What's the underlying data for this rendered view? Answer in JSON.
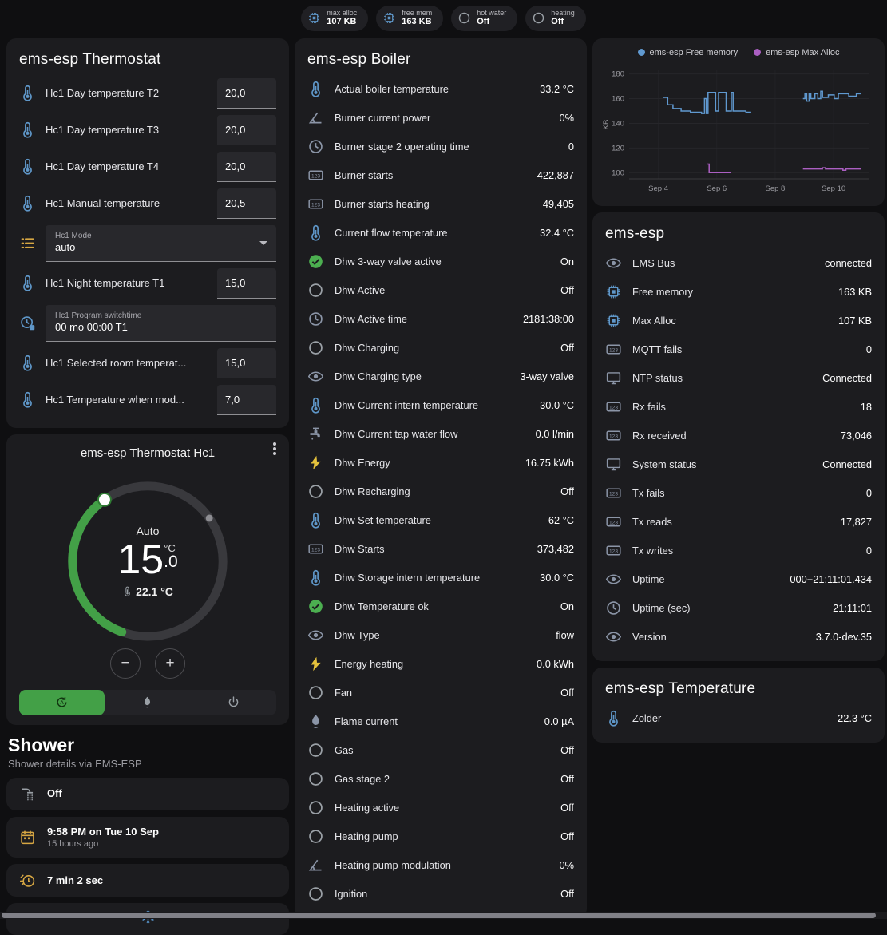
{
  "colors": {
    "background": "#0f0f11",
    "card": "#1c1c1f",
    "accent_green": "#43a047",
    "icon_blue": "#5f97c9",
    "icon_amber": "#d7a743",
    "icon_green": "#4caf50",
    "chart_free_memory": "#6099d0",
    "chart_max_alloc": "#ab5fc2"
  },
  "glyphs": {
    "minus": "−",
    "plus": "+"
  },
  "topbar": {
    "pills": [
      {
        "icon": "chip",
        "color": "c-blue",
        "label": "max alloc",
        "value": "107 KB"
      },
      {
        "icon": "chip",
        "color": "c-blue",
        "label": "free mem",
        "value": "163 KB"
      },
      {
        "icon": "circle",
        "color": "c-gray",
        "label": "hot water",
        "value": "Off"
      },
      {
        "icon": "circle",
        "color": "c-gray",
        "label": "heating",
        "value": "Off"
      }
    ]
  },
  "thermostat": {
    "title": "ems-esp Thermostat",
    "rows": [
      {
        "icon": "thermometer",
        "color": "c-blue",
        "type": "number",
        "label": "Hc1 Day temperature T2",
        "value": "20,0"
      },
      {
        "icon": "thermometer",
        "color": "c-blue",
        "type": "number",
        "label": "Hc1 Day temperature T3",
        "value": "20,0"
      },
      {
        "icon": "thermometer",
        "color": "c-blue",
        "type": "number",
        "label": "Hc1 Day temperature T4",
        "value": "20,0"
      },
      {
        "icon": "thermometer",
        "color": "c-blue",
        "type": "number",
        "label": "Hc1 Manual temperature",
        "value": "20,5"
      },
      {
        "icon": "list",
        "color": "c-amber",
        "type": "select",
        "label": "Hc1 Mode",
        "value": "auto"
      },
      {
        "icon": "thermometer",
        "color": "c-blue",
        "type": "number",
        "label": "Hc1 Night temperature T1",
        "value": "15,0"
      },
      {
        "icon": "clock-edit",
        "color": "c-blue",
        "type": "textfield",
        "label": "Hc1 Program switchtime",
        "value": "00 mo 00:00 T1"
      },
      {
        "icon": "thermometer",
        "color": "c-blue",
        "type": "number",
        "label": "Hc1 Selected room temperat...",
        "value": "15,0"
      },
      {
        "icon": "thermometer",
        "color": "c-blue",
        "type": "number",
        "label": "Hc1 Temperature when mod...",
        "value": "7,0"
      }
    ]
  },
  "dial": {
    "title": "ems-esp Thermostat Hc1",
    "mode": "Auto",
    "temp_int": "15",
    "temp_dec": ".0",
    "unit": "°C",
    "current": "22.1 °C"
  },
  "shower": {
    "title": "Shower",
    "subtitle": "Shower details via EMS-ESP",
    "cards": [
      {
        "icon": "shower",
        "color": "c-gray",
        "main": "Off",
        "sub": ""
      },
      {
        "icon": "calendar",
        "color": "c-amber",
        "main": "9:58 PM on Tue 10 Sep",
        "sub": "15 hours ago"
      },
      {
        "icon": "timer",
        "color": "c-amber",
        "main": "7 min 2 sec",
        "sub": ""
      }
    ]
  },
  "boiler": {
    "title": "ems-esp Boiler",
    "rows": [
      {
        "icon": "thermometer",
        "color": "c-blue",
        "label": "Actual boiler temperature",
        "value": "33.2 °C"
      },
      {
        "icon": "angle",
        "color": "c-slate",
        "label": "Burner current power",
        "value": "0%"
      },
      {
        "icon": "clock",
        "color": "c-slate",
        "label": "Burner stage 2 operating time",
        "value": "0"
      },
      {
        "icon": "counter",
        "color": "c-slate",
        "label": "Burner starts",
        "value": "422,887"
      },
      {
        "icon": "counter",
        "color": "c-slate",
        "label": "Burner starts heating",
        "value": "49,405"
      },
      {
        "icon": "thermometer",
        "color": "c-blue",
        "label": "Current flow temperature",
        "value": "32.4 °C"
      },
      {
        "icon": "check-circle",
        "color": "c-green",
        "label": "Dhw 3-way valve active",
        "value": "On"
      },
      {
        "icon": "circle",
        "color": "c-gray",
        "label": "Dhw Active",
        "value": "Off"
      },
      {
        "icon": "clock",
        "color": "c-slate",
        "label": "Dhw Active time",
        "value": "2181:38:00"
      },
      {
        "icon": "circle",
        "color": "c-gray",
        "label": "Dhw Charging",
        "value": "Off"
      },
      {
        "icon": "eye",
        "color": "c-slate",
        "label": "Dhw Charging type",
        "value": "3-way valve"
      },
      {
        "icon": "thermometer",
        "color": "c-blue",
        "label": "Dhw Current intern temperature",
        "value": "30.0 °C"
      },
      {
        "icon": "faucet",
        "color": "c-slate",
        "label": "Dhw Current tap water flow",
        "value": "0.0 l/min"
      },
      {
        "icon": "bolt",
        "color": "c-yellow",
        "label": "Dhw Energy",
        "value": "16.75 kWh"
      },
      {
        "icon": "circle",
        "color": "c-gray",
        "label": "Dhw Recharging",
        "value": "Off"
      },
      {
        "icon": "thermometer",
        "color": "c-blue",
        "label": "Dhw Set temperature",
        "value": "62 °C"
      },
      {
        "icon": "counter",
        "color": "c-slate",
        "label": "Dhw Starts",
        "value": "373,482"
      },
      {
        "icon": "thermometer",
        "color": "c-blue",
        "label": "Dhw Storage intern temperature",
        "value": "30.0 °C"
      },
      {
        "icon": "check-circle",
        "color": "c-green",
        "label": "Dhw Temperature ok",
        "value": "On"
      },
      {
        "icon": "eye",
        "color": "c-slate",
        "label": "Dhw Type",
        "value": "flow"
      },
      {
        "icon": "bolt",
        "color": "c-yellow",
        "label": "Energy heating",
        "value": "0.0 kWh"
      },
      {
        "icon": "circle",
        "color": "c-gray",
        "label": "Fan",
        "value": "Off"
      },
      {
        "icon": "flame",
        "color": "c-slate",
        "label": "Flame current",
        "value": "0.0 µA"
      },
      {
        "icon": "circle",
        "color": "c-gray",
        "label": "Gas",
        "value": "Off"
      },
      {
        "icon": "circle",
        "color": "c-gray",
        "label": "Gas stage 2",
        "value": "Off"
      },
      {
        "icon": "circle",
        "color": "c-gray",
        "label": "Heating active",
        "value": "Off"
      },
      {
        "icon": "circle",
        "color": "c-gray",
        "label": "Heating pump",
        "value": "Off"
      },
      {
        "icon": "angle",
        "color": "c-slate",
        "label": "Heating pump modulation",
        "value": "0%"
      },
      {
        "icon": "circle",
        "color": "c-gray",
        "label": "Ignition",
        "value": "Off"
      }
    ]
  },
  "emsesp": {
    "title": "ems-esp",
    "rows": [
      {
        "icon": "eye",
        "color": "c-slate",
        "label": "EMS Bus",
        "value": "connected"
      },
      {
        "icon": "chip",
        "color": "c-blue",
        "label": "Free memory",
        "value": "163 KB"
      },
      {
        "icon": "chip",
        "color": "c-blue",
        "label": "Max Alloc",
        "value": "107 KB"
      },
      {
        "icon": "counter",
        "color": "c-slate",
        "label": "MQTT fails",
        "value": "0"
      },
      {
        "icon": "display",
        "color": "c-slate",
        "label": "NTP status",
        "value": "Connected"
      },
      {
        "icon": "counter",
        "color": "c-slate",
        "label": "Rx fails",
        "value": "18"
      },
      {
        "icon": "counter",
        "color": "c-slate",
        "label": "Rx received",
        "value": "73,046"
      },
      {
        "icon": "display",
        "color": "c-slate",
        "label": "System status",
        "value": "Connected"
      },
      {
        "icon": "counter",
        "color": "c-slate",
        "label": "Tx fails",
        "value": "0"
      },
      {
        "icon": "counter",
        "color": "c-slate",
        "label": "Tx reads",
        "value": "17,827"
      },
      {
        "icon": "counter",
        "color": "c-slate",
        "label": "Tx writes",
        "value": "0"
      },
      {
        "icon": "eye",
        "color": "c-slate",
        "label": "Uptime",
        "value": "000+21:11:01.434"
      },
      {
        "icon": "clock",
        "color": "c-slate",
        "label": "Uptime (sec)",
        "value": "21:11:01"
      },
      {
        "icon": "eye",
        "color": "c-slate",
        "label": "Version",
        "value": "3.7.0-dev.35"
      }
    ]
  },
  "temperature": {
    "title": "ems-esp Temperature",
    "rows": [
      {
        "icon": "thermometer",
        "color": "c-blue",
        "label": "Zolder",
        "value": "22.3 °C"
      }
    ]
  },
  "chart_data": {
    "type": "line",
    "ylabel": "KB",
    "xlim": [
      3.0,
      11.2
    ],
    "ylim": [
      95,
      183
    ],
    "y_ticks": [
      100,
      120,
      140,
      160,
      180
    ],
    "x_ticks": [
      {
        "d": 4,
        "label": "Sep 4"
      },
      {
        "d": 6,
        "label": "Sep 6"
      },
      {
        "d": 8,
        "label": "Sep 8"
      },
      {
        "d": 10,
        "label": "Sep 10"
      }
    ],
    "grid": true,
    "legend_position": "top",
    "series": [
      {
        "name": "ems-esp Free memory",
        "color": "#6099d0",
        "segments": [
          [
            [
              4.15,
              161
            ],
            [
              4.32,
              161
            ],
            [
              4.32,
              155
            ],
            [
              4.5,
              155
            ],
            [
              4.5,
              152
            ],
            [
              4.78,
              152
            ],
            [
              4.78,
              150
            ],
            [
              5.1,
              150
            ],
            [
              5.1,
              149
            ],
            [
              5.48,
              149
            ],
            [
              5.48,
              148
            ],
            [
              5.58,
              148
            ],
            [
              5.58,
              160
            ],
            [
              5.64,
              160
            ],
            [
              5.64,
              148
            ],
            [
              5.7,
              148
            ],
            [
              5.7,
              165
            ],
            [
              5.96,
              165
            ],
            [
              5.96,
              150
            ],
            [
              6.06,
              150
            ],
            [
              6.06,
              165
            ],
            [
              6.32,
              165
            ],
            [
              6.32,
              150
            ],
            [
              6.5,
              150
            ],
            [
              6.5,
              165
            ],
            [
              6.56,
              165
            ],
            [
              6.56,
              150
            ],
            [
              7.0,
              150
            ],
            [
              7.0,
              149
            ],
            [
              7.18,
              149
            ]
          ],
          [
            [
              8.95,
              160
            ],
            [
              9.02,
              160
            ],
            [
              9.02,
              164
            ],
            [
              9.08,
              164
            ],
            [
              9.08,
              158
            ],
            [
              9.16,
              158
            ],
            [
              9.16,
              164
            ],
            [
              9.22,
              164
            ],
            [
              9.22,
              160
            ],
            [
              9.36,
              160
            ],
            [
              9.36,
              164
            ],
            [
              9.46,
              164
            ],
            [
              9.46,
              160
            ],
            [
              9.56,
              160
            ],
            [
              9.56,
              166
            ],
            [
              9.62,
              166
            ],
            [
              9.62,
              161
            ],
            [
              9.82,
              161
            ],
            [
              9.82,
              163
            ],
            [
              10.02,
              163
            ],
            [
              10.02,
              160
            ],
            [
              10.16,
              160
            ],
            [
              10.16,
              164
            ],
            [
              10.52,
              164
            ],
            [
              10.52,
              162
            ],
            [
              10.78,
              162
            ],
            [
              10.78,
              164
            ],
            [
              10.95,
              164
            ]
          ]
        ]
      },
      {
        "name": "ems-esp Max Alloc",
        "color": "#ab5fc2",
        "segments": [
          [
            [
              5.68,
              107
            ],
            [
              5.74,
              107
            ],
            [
              5.74,
              100
            ],
            [
              6.5,
              100
            ]
          ],
          [
            [
              8.95,
              103
            ],
            [
              9.62,
              103
            ],
            [
              9.62,
              104
            ],
            [
              9.72,
              104
            ],
            [
              9.72,
              103
            ],
            [
              10.32,
              103
            ],
            [
              10.32,
              102
            ],
            [
              10.42,
              102
            ],
            [
              10.42,
              103
            ],
            [
              10.95,
              103
            ]
          ]
        ]
      }
    ]
  }
}
